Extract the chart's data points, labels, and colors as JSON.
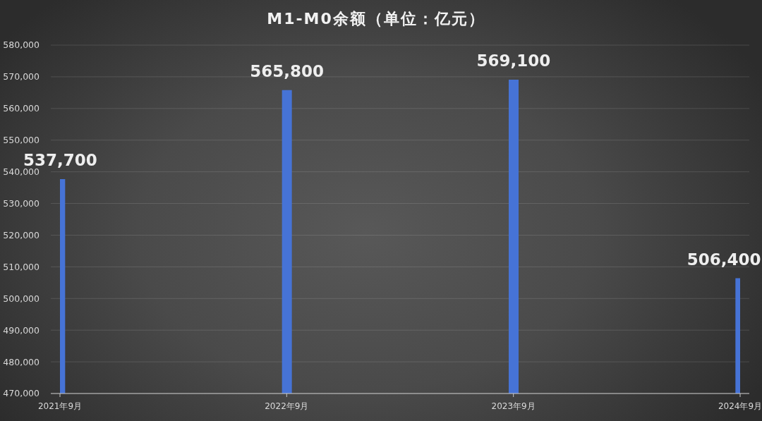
{
  "chart_data": {
    "type": "bar",
    "title": "M1-M0余额（单位：亿元）",
    "categories": [
      "2021年9月",
      "2022年9月",
      "2023年9月",
      "2024年9月"
    ],
    "values": [
      537700,
      565800,
      569100,
      506400
    ],
    "color": "#4673d6",
    "value_labels": [
      "537,700",
      "565,800",
      "569,100",
      "506,400"
    ],
    "ylim": [
      470000,
      580000
    ],
    "yticks": [
      {
        "value": 470000,
        "label": "470,000"
      },
      {
        "value": 480000,
        "label": "480,000"
      },
      {
        "value": 490000,
        "label": "490,000"
      },
      {
        "value": 500000,
        "label": "500,000"
      },
      {
        "value": 510000,
        "label": "510,000"
      },
      {
        "value": 520000,
        "label": "520,000"
      },
      {
        "value": 530000,
        "label": "530,000"
      },
      {
        "value": 540000,
        "label": "540,000"
      },
      {
        "value": 550000,
        "label": "550,000"
      },
      {
        "value": 560000,
        "label": "560,000"
      },
      {
        "value": 570000,
        "label": "570,000"
      },
      {
        "value": 580000,
        "label": "580,000"
      }
    ],
    "grid": "y"
  }
}
